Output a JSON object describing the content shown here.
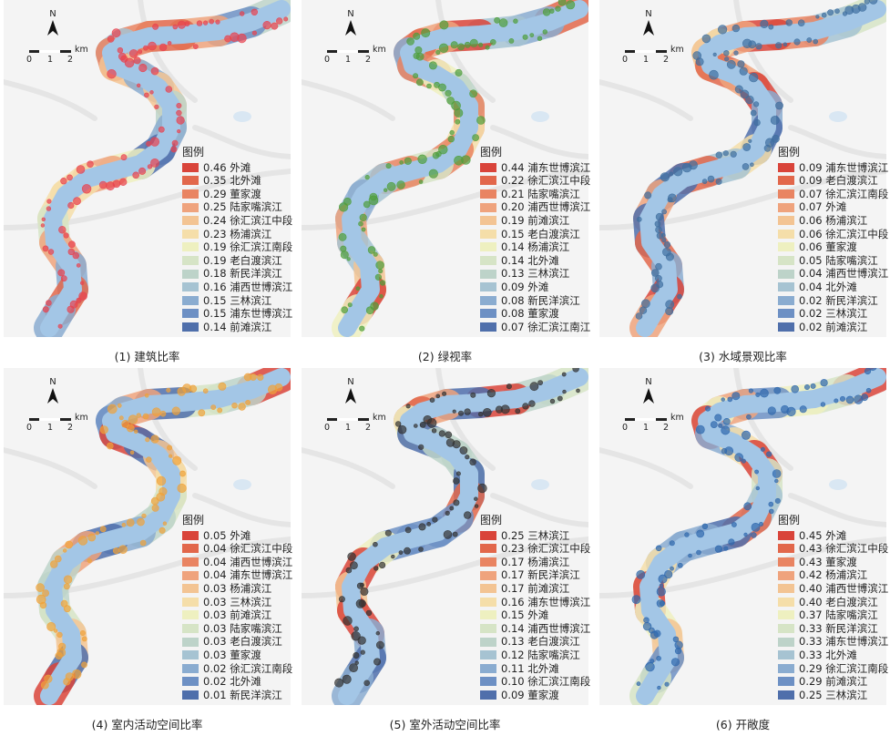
{
  "north_label": "N",
  "scale": {
    "unit": "km",
    "ticks": [
      "0",
      "1",
      "2"
    ]
  },
  "legend_title": "图例",
  "colors": {
    "ramp": [
      "#d9443a",
      "#e2674b",
      "#e98462",
      "#efa37d",
      "#f3c493",
      "#f5dea9",
      "#eef0c0",
      "#d6e4c6",
      "#bdd3c9",
      "#a6c3d2",
      "#8aacd0",
      "#6d90c4",
      "#4f6fab"
    ],
    "river": "#a3c6e6",
    "land": "#f4f4f4",
    "road": "#e5e5e5",
    "panel1_marker": "#e8424f",
    "panel2_marker": "#4f9e3c",
    "panel3_marker": "#3f6f9f",
    "panel4_marker": "#f0a23a",
    "panel5_marker": "#333333",
    "panel6_marker": "#2f68ad"
  },
  "panels": [
    {
      "caption": "(1) 建筑比率",
      "marker": "panel1_marker",
      "legend": [
        {
          "value": "0.46",
          "name": "外滩"
        },
        {
          "value": "0.35",
          "name": "北外滩"
        },
        {
          "value": "0.29",
          "name": "董家渡"
        },
        {
          "value": "0.25",
          "name": "陆家嘴滨江"
        },
        {
          "value": "0.24",
          "name": "徐汇滨江中段"
        },
        {
          "value": "0.23",
          "name": "杨浦滨江"
        },
        {
          "value": "0.19",
          "name": "徐汇滨江南段"
        },
        {
          "value": "0.19",
          "name": "老白渡滨江"
        },
        {
          "value": "0.18",
          "name": "新民洋滨江"
        },
        {
          "value": "0.16",
          "name": "浦西世博滨江"
        },
        {
          "value": "0.15",
          "name": "三林滨江"
        },
        {
          "value": "0.15",
          "name": "浦东世博滨江"
        },
        {
          "value": "0.14",
          "name": "前滩滨江"
        }
      ]
    },
    {
      "caption": "(2) 绿视率",
      "marker": "panel2_marker",
      "legend": [
        {
          "value": "0.44",
          "name": "浦东世博滨江"
        },
        {
          "value": "0.22",
          "name": "徐汇滨江中段"
        },
        {
          "value": "0.21",
          "name": "陆家嘴滨江"
        },
        {
          "value": "0.20",
          "name": "浦西世博滨江"
        },
        {
          "value": "0.19",
          "name": "前滩滨江"
        },
        {
          "value": "0.15",
          "name": "老白渡滨江"
        },
        {
          "value": "0.14",
          "name": "杨浦滨江"
        },
        {
          "value": "0.14",
          "name": "北外滩"
        },
        {
          "value": "0.13",
          "name": "三林滨江"
        },
        {
          "value": "0.09",
          "name": "外滩"
        },
        {
          "value": "0.08",
          "name": "新民洋滨江"
        },
        {
          "value": "0.08",
          "name": "董家渡"
        },
        {
          "value": "0.07",
          "name": "徐汇滨江南江"
        }
      ]
    },
    {
      "caption": "(3) 水域景观比率",
      "marker": "panel3_marker",
      "legend": [
        {
          "value": "0.09",
          "name": "浦东世博滨江"
        },
        {
          "value": "0.09",
          "name": "老白渡滨江"
        },
        {
          "value": "0.07",
          "name": "徐汇滨江南段"
        },
        {
          "value": "0.07",
          "name": "外滩"
        },
        {
          "value": "0.06",
          "name": "杨浦滨江"
        },
        {
          "value": "0.06",
          "name": "徐汇滨江中段"
        },
        {
          "value": "0.06",
          "name": "董家渡"
        },
        {
          "value": "0.05",
          "name": "陆家嘴滨江"
        },
        {
          "value": "0.04",
          "name": "浦西世博滨江"
        },
        {
          "value": "0.04",
          "name": "北外滩"
        },
        {
          "value": "0.02",
          "name": "新民洋滨江"
        },
        {
          "value": "0.02",
          "name": "三林滨江"
        },
        {
          "value": "0.02",
          "name": "前滩滨江"
        }
      ]
    },
    {
      "caption": "(4) 室内活动空间比率",
      "marker": "panel4_marker",
      "legend": [
        {
          "value": "0.05",
          "name": "外滩"
        },
        {
          "value": "0.04",
          "name": "徐汇滨江中段"
        },
        {
          "value": "0.04",
          "name": "浦西世博滨江"
        },
        {
          "value": "0.04",
          "name": "浦东世博滨江"
        },
        {
          "value": "0.03",
          "name": "杨浦滨江"
        },
        {
          "value": "0.03",
          "name": "三林滨江"
        },
        {
          "value": "0.03",
          "name": "前滩滨江"
        },
        {
          "value": "0.03",
          "name": "陆家嘴滨江"
        },
        {
          "value": "0.03",
          "name": "老白渡滨江"
        },
        {
          "value": "0.03",
          "name": "董家渡"
        },
        {
          "value": "0.02",
          "name": "徐汇滨江南段"
        },
        {
          "value": "0.02",
          "name": "北外滩"
        },
        {
          "value": "0.01",
          "name": "新民洋滨江"
        }
      ]
    },
    {
      "caption": "(5) 室外活动空间比率",
      "marker": "panel5_marker",
      "legend": [
        {
          "value": "0.25",
          "name": "三林滨江"
        },
        {
          "value": "0.23",
          "name": "徐汇滨江中段"
        },
        {
          "value": "0.17",
          "name": "杨浦滨江"
        },
        {
          "value": "0.17",
          "name": "新民洋滨江"
        },
        {
          "value": "0.17",
          "name": "前滩滨江"
        },
        {
          "value": "0.16",
          "name": "浦东世博滨江"
        },
        {
          "value": "0.15",
          "name": "外滩"
        },
        {
          "value": "0.14",
          "name": "浦西世博滨江"
        },
        {
          "value": "0.13",
          "name": "老白渡滨江"
        },
        {
          "value": "0.12",
          "name": "陆家嘴滨江"
        },
        {
          "value": "0.11",
          "name": "北外滩"
        },
        {
          "value": "0.10",
          "name": "徐汇滨江南段"
        },
        {
          "value": "0.09",
          "name": "董家渡"
        }
      ]
    },
    {
      "caption": "(6) 开敞度",
      "marker": "panel6_marker",
      "legend": [
        {
          "value": "0.45",
          "name": "外滩"
        },
        {
          "value": "0.43",
          "name": "徐汇滨江中段"
        },
        {
          "value": "0.43",
          "name": "董家渡"
        },
        {
          "value": "0.42",
          "name": "杨浦滨江"
        },
        {
          "value": "0.40",
          "name": "浦西世博滨江"
        },
        {
          "value": "0.40",
          "name": "老白渡滨江"
        },
        {
          "value": "0.37",
          "name": "陆家嘴滨江"
        },
        {
          "value": "0.33",
          "name": "新民洋滨江"
        },
        {
          "value": "0.33",
          "name": "浦东世博滨江"
        },
        {
          "value": "0.33",
          "name": "北外滩"
        },
        {
          "value": "0.29",
          "name": "徐汇滨江南段"
        },
        {
          "value": "0.29",
          "name": "前滩滨江"
        },
        {
          "value": "0.25",
          "name": "三林滨江"
        }
      ]
    }
  ]
}
